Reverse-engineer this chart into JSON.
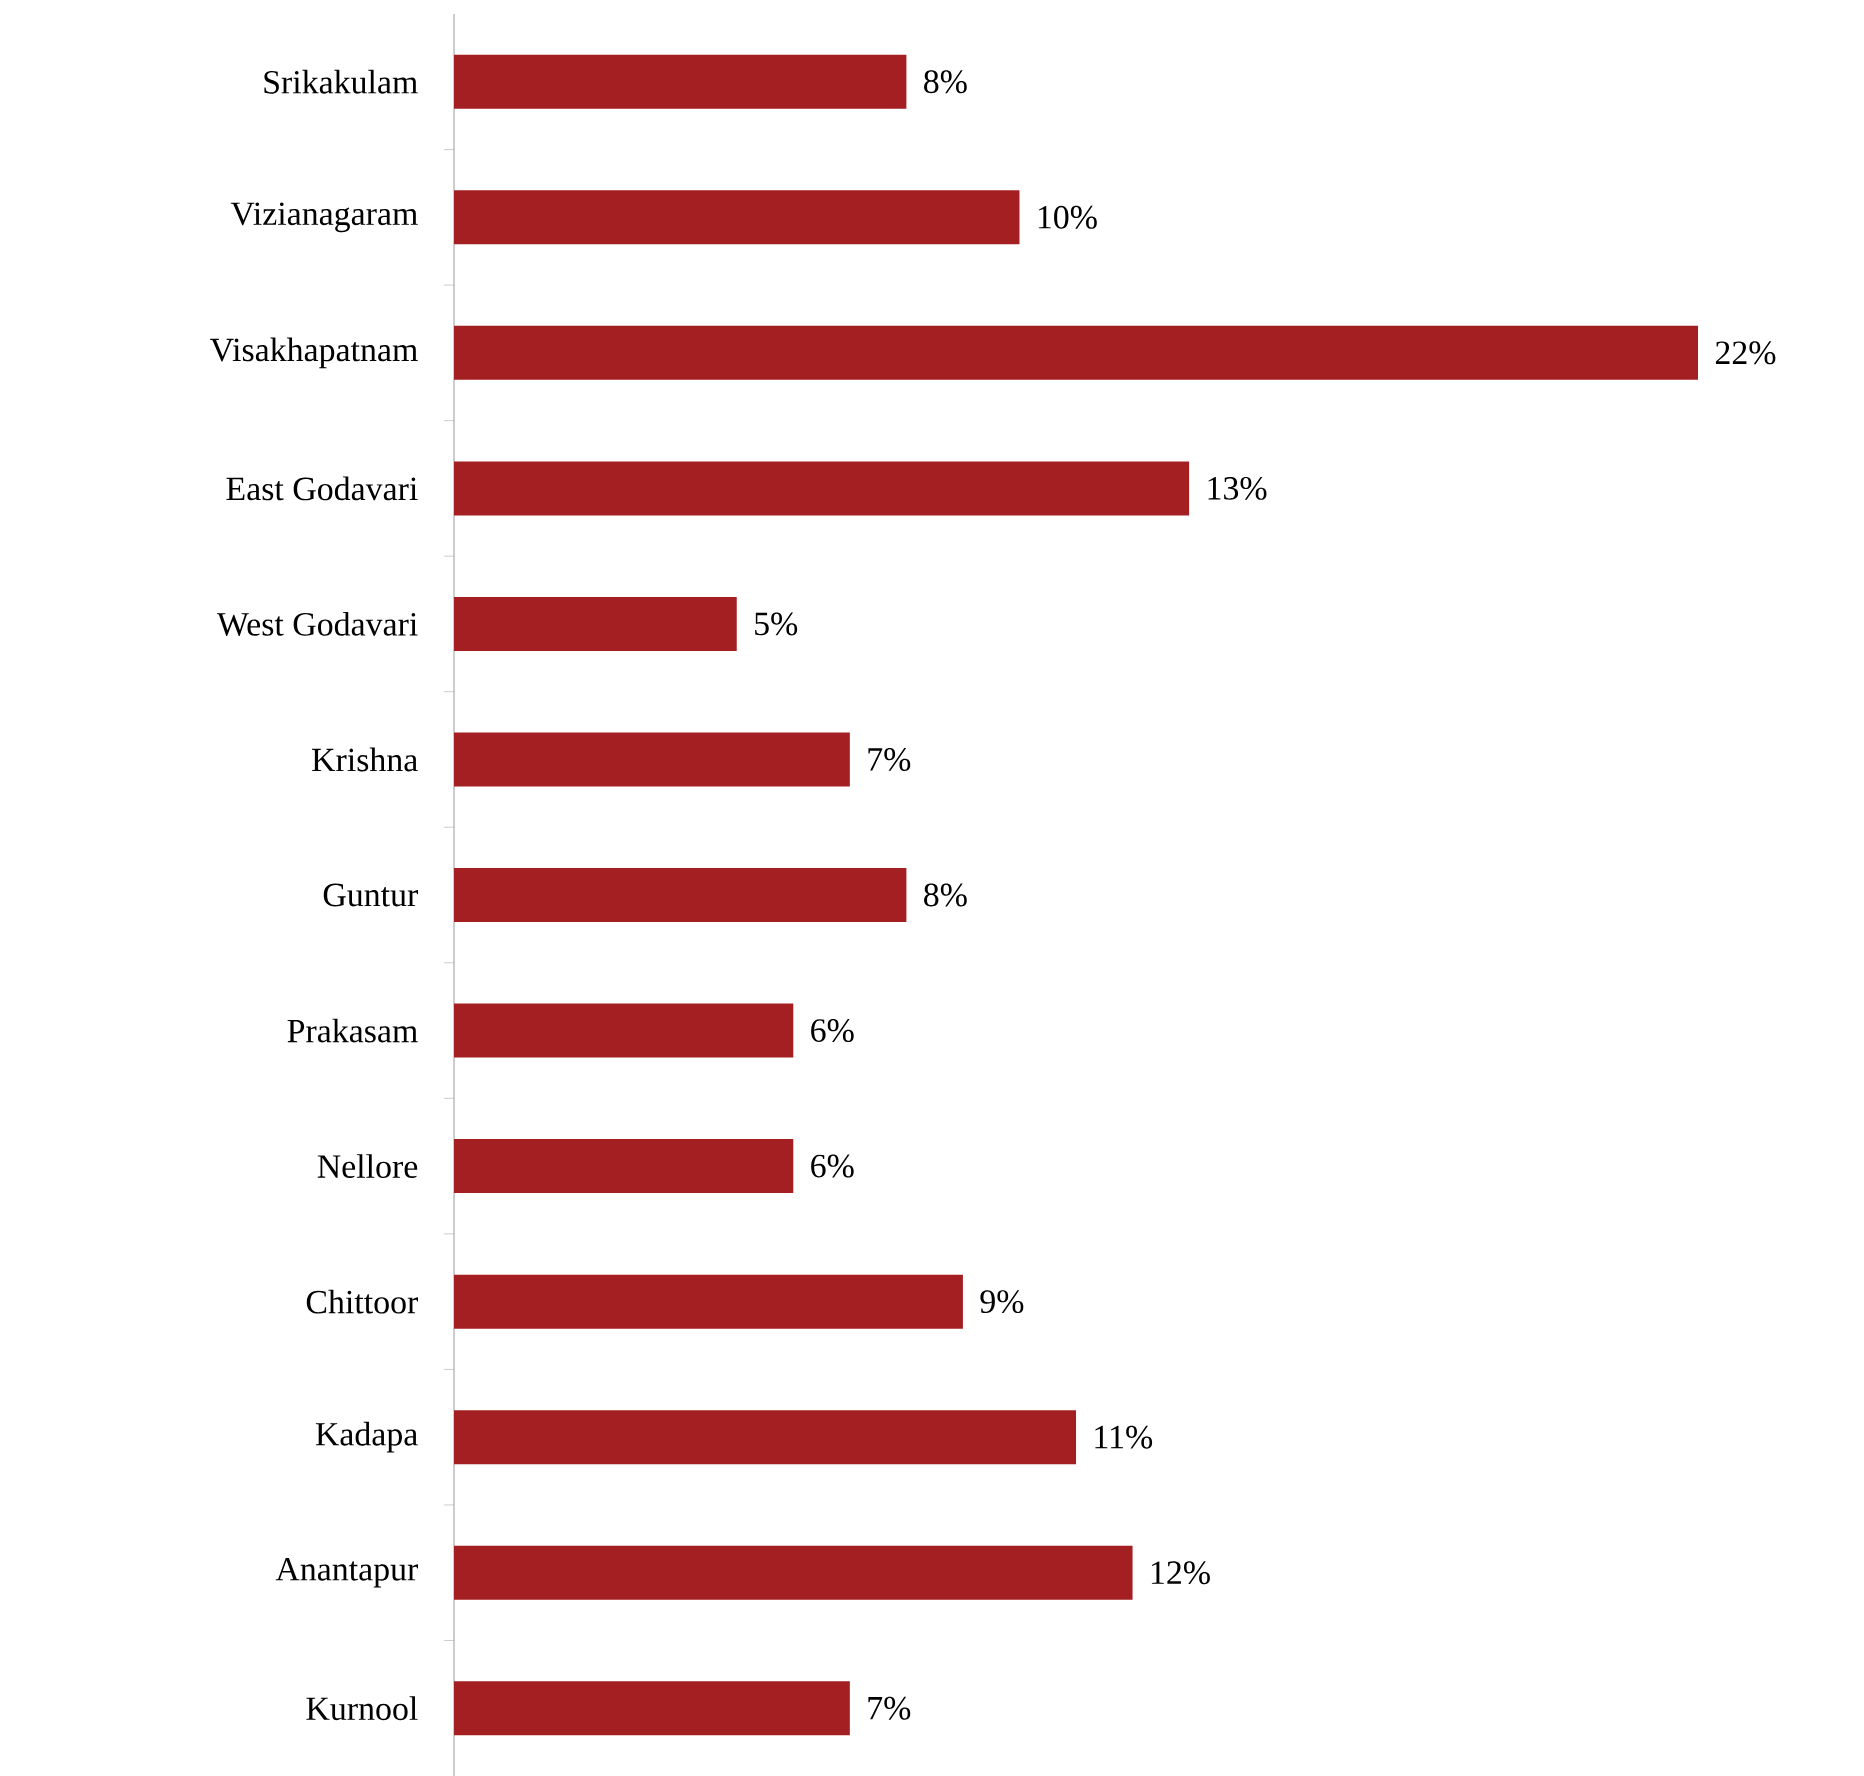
{
  "chart_data": {
    "type": "bar",
    "orientation": "horizontal",
    "categories": [
      "Srikakulam",
      "Vizianagaram",
      "Visakhapatnam",
      "East Godavari",
      "West Godavari",
      "Krishna",
      "Guntur",
      "Prakasam",
      "Nellore",
      "Chittoor",
      "Kadapa",
      "Anantapur",
      "Kurnool"
    ],
    "values": [
      8,
      10,
      22,
      13,
      5,
      7,
      8,
      6,
      6,
      9,
      11,
      12,
      7
    ],
    "value_labels": [
      "8%",
      "10%",
      "22%",
      "13%",
      "5%",
      "7%",
      "8%",
      "6%",
      "6%",
      "9%",
      "11%",
      "12%",
      "7%"
    ],
    "color": "#a41f22"
  }
}
